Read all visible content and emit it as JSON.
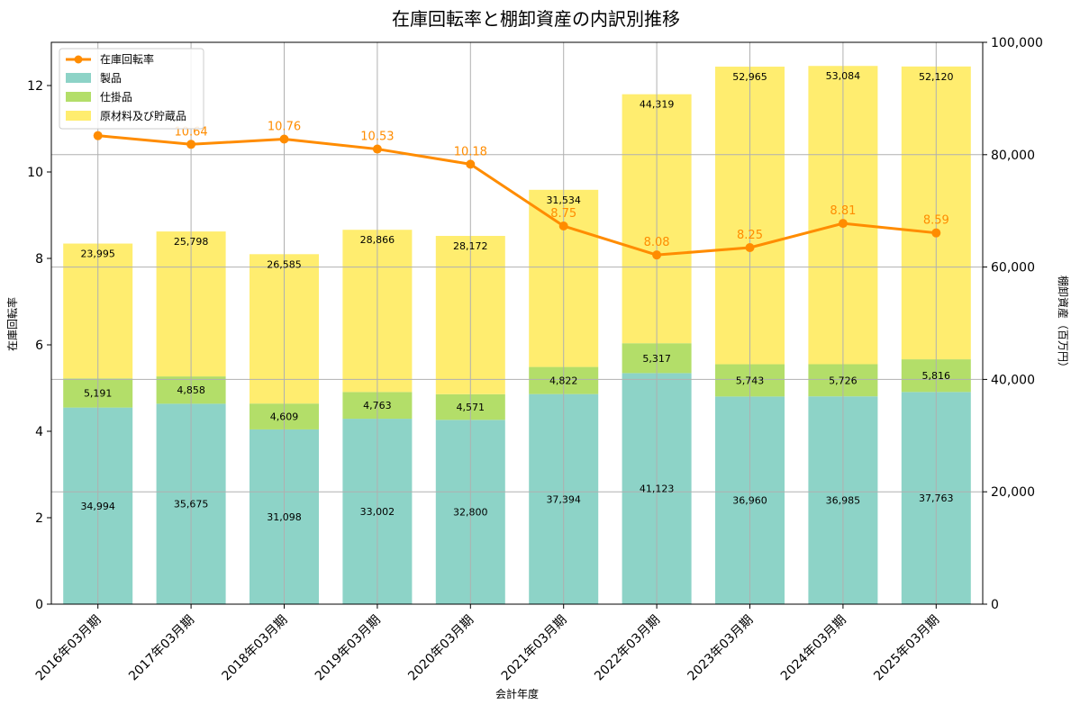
{
  "chart_data": {
    "type": "bar",
    "title": "在庫回転率と棚卸資産の内訳別推移",
    "xlabel": "会計年度",
    "ylabel_left": "在庫回転率",
    "ylabel_right": "棚卸資産（百万円）",
    "categories": [
      "2016年03月期",
      "2017年03月期",
      "2018年03月期",
      "2019年03月期",
      "2020年03月期",
      "2021年03月期",
      "2022年03月期",
      "2023年03月期",
      "2024年03月期",
      "2025年03月期"
    ],
    "ylim_left": [
      0,
      13
    ],
    "yticks_left": [
      0,
      2,
      4,
      6,
      8,
      10,
      12
    ],
    "ylim_right": [
      0,
      100000
    ],
    "yticks_right": [
      0,
      20000,
      40000,
      60000,
      80000,
      100000
    ],
    "ytick_labels_right": [
      "0",
      "20,000",
      "40,000",
      "60,000",
      "80,000",
      "100,000"
    ],
    "stacked": true,
    "grid": true,
    "legend_position": "top-left",
    "bar_series": [
      {
        "name": "製品",
        "color": "#8dd3c7",
        "values": [
          34994,
          35675,
          31098,
          33002,
          32800,
          37394,
          41123,
          36960,
          36985,
          37763
        ],
        "labels": [
          "34,994",
          "35,675",
          "31,098",
          "33,002",
          "32,800",
          "37,394",
          "41,123",
          "36,960",
          "36,985",
          "37,763"
        ]
      },
      {
        "name": "仕掛品",
        "color": "#b3de69",
        "values": [
          5191,
          4858,
          4609,
          4763,
          4571,
          4822,
          5317,
          5743,
          5726,
          5816
        ],
        "labels": [
          "5,191",
          "4,858",
          "4,609",
          "4,763",
          "4,571",
          "4,822",
          "5,317",
          "5,743",
          "5,726",
          "5,816"
        ]
      },
      {
        "name": "原材料及び貯蔵品",
        "color": "#ffed6f",
        "values": [
          23995,
          25798,
          26585,
          28866,
          28172,
          31534,
          44319,
          52965,
          53084,
          52120
        ],
        "labels": [
          "23,995",
          "25,798",
          "26,585",
          "28,866",
          "28,172",
          "31,534",
          "44,319",
          "52,965",
          "53,084",
          "52,120"
        ]
      }
    ],
    "line_series": {
      "name": "在庫回転率",
      "color": "#ff8c00",
      "values": [
        10.84,
        10.64,
        10.76,
        10.53,
        10.18,
        8.75,
        8.08,
        8.25,
        8.81,
        8.59
      ],
      "labels": [
        "",
        "10.64",
        "10.76",
        "10.53",
        "10.18",
        "8.75",
        "8.08",
        "8.25",
        "8.81",
        "8.59"
      ]
    }
  }
}
